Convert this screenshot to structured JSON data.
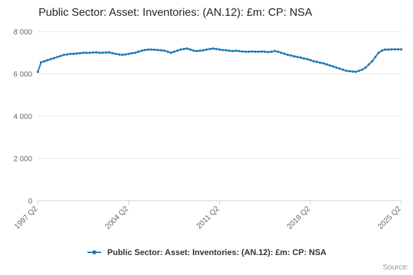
{
  "page": {
    "title": "Public Sector: Asset: Inventories: (AN.12): £m: CP: NSA",
    "source_label": "Source:"
  },
  "legend": {
    "label": "Public Sector: Asset: Inventories: (AN.12): £m: CP: NSA"
  },
  "chart_data": {
    "type": "line",
    "title": "Public Sector: Asset: Inventories: (AN.12): £m: CP: NSA",
    "xlabel": "",
    "ylabel": "",
    "legend_position": "bottom",
    "grid": true,
    "color": "#1f77b4",
    "ylim": [
      0,
      8000
    ],
    "yticks": [
      {
        "value": 0,
        "label": "0"
      },
      {
        "value": 2000,
        "label": "2 000"
      },
      {
        "value": 4000,
        "label": "4 000"
      },
      {
        "value": 6000,
        "label": "6 000"
      },
      {
        "value": 8000,
        "label": "8 000"
      }
    ],
    "xticks": [
      {
        "index": 0,
        "label": "1997 Q2"
      },
      {
        "index": 28,
        "label": "2004 Q2"
      },
      {
        "index": 56,
        "label": "2011 Q2"
      },
      {
        "index": 84,
        "label": "2018 Q2"
      },
      {
        "index": 112,
        "label": "2025 Q2"
      }
    ],
    "x": [
      "1997 Q2",
      "1997 Q3",
      "1997 Q4",
      "1998 Q1",
      "1998 Q2",
      "1998 Q3",
      "1998 Q4",
      "1999 Q1",
      "1999 Q2",
      "1999 Q3",
      "1999 Q4",
      "2000 Q1",
      "2000 Q2",
      "2000 Q3",
      "2000 Q4",
      "2001 Q1",
      "2001 Q2",
      "2001 Q3",
      "2001 Q4",
      "2002 Q1",
      "2002 Q2",
      "2002 Q3",
      "2002 Q4",
      "2003 Q1",
      "2003 Q2",
      "2003 Q3",
      "2003 Q4",
      "2004 Q1",
      "2004 Q2",
      "2004 Q3",
      "2004 Q4",
      "2005 Q1",
      "2005 Q2",
      "2005 Q3",
      "2005 Q4",
      "2006 Q1",
      "2006 Q2",
      "2006 Q3",
      "2006 Q4",
      "2007 Q1",
      "2007 Q2",
      "2007 Q3",
      "2007 Q4",
      "2008 Q1",
      "2008 Q2",
      "2008 Q3",
      "2008 Q4",
      "2009 Q1",
      "2009 Q2",
      "2009 Q3",
      "2009 Q4",
      "2010 Q1",
      "2010 Q2",
      "2010 Q3",
      "2010 Q4",
      "2011 Q1",
      "2011 Q2",
      "2011 Q3",
      "2011 Q4",
      "2012 Q1",
      "2012 Q2",
      "2012 Q3",
      "2012 Q4",
      "2013 Q1",
      "2013 Q2",
      "2013 Q3",
      "2013 Q4",
      "2014 Q1",
      "2014 Q2",
      "2014 Q3",
      "2014 Q4",
      "2015 Q1",
      "2015 Q2",
      "2015 Q3",
      "2015 Q4",
      "2016 Q1",
      "2016 Q2",
      "2016 Q3",
      "2016 Q4",
      "2017 Q1",
      "2017 Q2",
      "2017 Q3",
      "2017 Q4",
      "2018 Q1",
      "2018 Q2",
      "2018 Q3",
      "2018 Q4",
      "2019 Q1",
      "2019 Q2",
      "2019 Q3",
      "2019 Q4",
      "2020 Q1",
      "2020 Q2",
      "2020 Q3",
      "2020 Q4",
      "2021 Q1",
      "2021 Q2",
      "2021 Q3",
      "2021 Q4",
      "2022 Q1",
      "2022 Q2",
      "2022 Q3",
      "2022 Q4",
      "2023 Q1",
      "2023 Q2",
      "2023 Q3",
      "2023 Q4",
      "2024 Q1",
      "2024 Q2",
      "2024 Q3",
      "2024 Q4",
      "2025 Q1",
      "2025 Q2"
    ],
    "values": [
      6100,
      6550,
      6600,
      6650,
      6700,
      6750,
      6800,
      6850,
      6900,
      6920,
      6950,
      6950,
      6970,
      6980,
      7000,
      7000,
      7000,
      7010,
      7020,
      7000,
      7000,
      7010,
      7020,
      6980,
      6950,
      6920,
      6900,
      6920,
      6950,
      6980,
      7000,
      7050,
      7100,
      7130,
      7150,
      7150,
      7140,
      7130,
      7120,
      7100,
      7050,
      7000,
      7050,
      7100,
      7150,
      7180,
      7200,
      7150,
      7100,
      7080,
      7100,
      7120,
      7150,
      7180,
      7200,
      7180,
      7150,
      7130,
      7120,
      7100,
      7080,
      7100,
      7080,
      7060,
      7050,
      7050,
      7060,
      7050,
      7050,
      7060,
      7050,
      7030,
      7050,
      7080,
      7050,
      7000,
      6950,
      6900,
      6870,
      6830,
      6800,
      6770,
      6730,
      6700,
      6650,
      6600,
      6570,
      6530,
      6500,
      6450,
      6400,
      6350,
      6300,
      6250,
      6200,
      6150,
      6130,
      6110,
      6100,
      6150,
      6200,
      6300,
      6450,
      6600,
      6800,
      7000,
      7100,
      7150,
      7150,
      7160,
      7160,
      7160,
      7160
    ]
  }
}
